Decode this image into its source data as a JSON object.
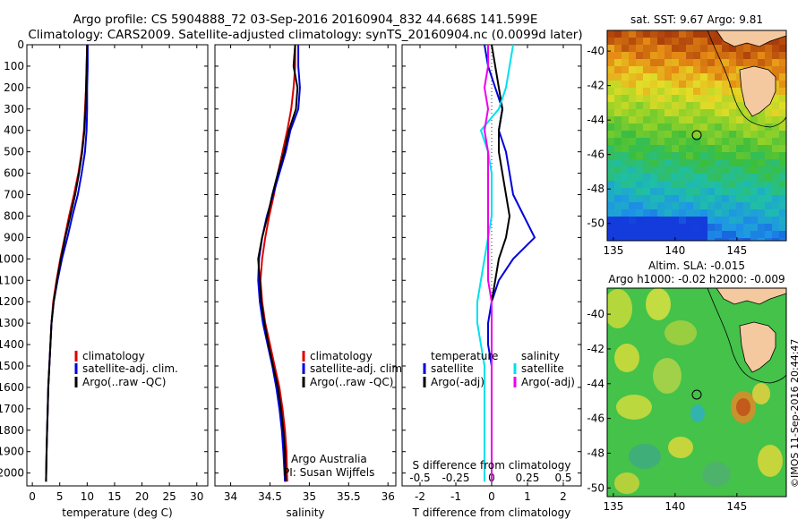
{
  "header": {
    "title_line1": "Argo profile: CS 5904888_72 03-Sep-2016 20160904_832 44.668S 141.599E",
    "title_line2": "Climatology: CARS2009. Satellite-adjusted climatology: synTS_20160904.nc (0.0099d later)"
  },
  "credits": {
    "org": "Argo Australia",
    "pi": "PI: Susan Wijffels",
    "stamp": "©IMOS 11-Sep-2016 20:44:47"
  },
  "colors": {
    "climatology": "#dd0000",
    "satellite": "#0000dd",
    "argo": "#000000",
    "salinity_satellite": "#00e0ee",
    "salinity_argo": "#ee00ee",
    "land": "#f5c9a0"
  },
  "chart_data": [
    {
      "id": "temperature",
      "type": "line",
      "xlabel": "temperature (deg C)",
      "ylabel": "",
      "xlim": [
        -1,
        32
      ],
      "ylim": [
        2060,
        0
      ],
      "xticks": [
        0,
        5,
        10,
        15,
        20,
        25,
        30
      ],
      "yticks": [
        0,
        100,
        200,
        300,
        400,
        500,
        600,
        700,
        800,
        900,
        1000,
        1100,
        1200,
        1300,
        1400,
        1500,
        1600,
        1700,
        1800,
        1900,
        2000
      ],
      "legend": [
        "climatology",
        "satellite-adj. clim.",
        "Argo(..raw -QC)"
      ],
      "series": [
        {
          "name": "climatology",
          "color": "#dd0000",
          "x": [
            10.0,
            9.9,
            9.8,
            9.6,
            9.4,
            9.0,
            8.4,
            7.6,
            6.7,
            5.9,
            5.1,
            4.4,
            3.8,
            3.5,
            3.3,
            3.1,
            2.9,
            2.8,
            2.7,
            2.6,
            2.5
          ],
          "y": [
            0,
            100,
            200,
            300,
            400,
            500,
            600,
            700,
            800,
            900,
            1000,
            1100,
            1200,
            1300,
            1400,
            1500,
            1600,
            1700,
            1800,
            1900,
            2040
          ]
        },
        {
          "name": "satellite-adj. clim.",
          "color": "#0000dd",
          "x": [
            10.1,
            10.1,
            10.0,
            10.0,
            9.9,
            9.6,
            9.0,
            8.3,
            7.3,
            6.4,
            5.4,
            4.6,
            3.9,
            3.5,
            3.3,
            3.1,
            2.9,
            2.8,
            2.7,
            2.6,
            2.5
          ],
          "y": [
            0,
            100,
            200,
            300,
            400,
            500,
            600,
            700,
            800,
            900,
            1000,
            1100,
            1200,
            1300,
            1400,
            1500,
            1600,
            1700,
            1800,
            1900,
            2040
          ]
        },
        {
          "name": "Argo(..raw -QC)",
          "color": "#000000",
          "x": [
            10.0,
            9.9,
            9.8,
            9.7,
            9.5,
            9.1,
            8.5,
            7.8,
            6.9,
            6.0,
            5.2,
            4.5,
            3.9,
            3.5,
            3.3,
            3.1,
            2.9,
            2.8,
            2.7,
            2.6,
            2.5
          ],
          "y": [
            0,
            100,
            200,
            300,
            400,
            500,
            600,
            700,
            800,
            900,
            1000,
            1100,
            1200,
            1300,
            1400,
            1500,
            1600,
            1700,
            1800,
            1900,
            2040
          ]
        }
      ]
    },
    {
      "id": "salinity",
      "type": "line",
      "xlabel": "salinity",
      "xlim": [
        33.8,
        36.1
      ],
      "ylim": [
        2060,
        0
      ],
      "xticks": [
        34,
        34.5,
        35,
        35.5,
        36
      ],
      "legend": [
        "climatology",
        "satellite-adj. clim.",
        "Argo(..raw -QC)"
      ],
      "series": [
        {
          "name": "climatology",
          "color": "#dd0000",
          "x": [
            34.82,
            34.82,
            34.8,
            34.77,
            34.72,
            34.66,
            34.6,
            34.55,
            34.49,
            34.44,
            34.4,
            34.38,
            34.4,
            34.44,
            34.5,
            34.56,
            34.62,
            34.66,
            34.69,
            34.71,
            34.72
          ],
          "y": [
            0,
            100,
            200,
            300,
            400,
            500,
            600,
            700,
            800,
            900,
            1000,
            1100,
            1200,
            1300,
            1400,
            1500,
            1600,
            1700,
            1800,
            1900,
            2040
          ]
        },
        {
          "name": "satellite-adj. clim.",
          "color": "#0000dd",
          "x": [
            34.86,
            34.86,
            34.88,
            34.86,
            34.76,
            34.7,
            34.62,
            34.54,
            34.46,
            34.4,
            34.36,
            34.35,
            34.37,
            34.41,
            34.47,
            34.53,
            34.58,
            34.62,
            34.65,
            34.67,
            34.69
          ],
          "y": [
            0,
            100,
            200,
            300,
            400,
            500,
            600,
            700,
            800,
            900,
            1000,
            1100,
            1200,
            1300,
            1400,
            1500,
            1600,
            1700,
            1800,
            1900,
            2040
          ]
        },
        {
          "name": "Argo(..raw -QC)",
          "color": "#000000",
          "x": [
            34.82,
            34.8,
            34.85,
            34.83,
            34.74,
            34.68,
            34.6,
            34.53,
            34.47,
            34.4,
            34.35,
            34.37,
            34.39,
            34.43,
            34.48,
            34.54,
            34.6,
            34.64,
            34.67,
            34.69,
            34.7
          ],
          "y": [
            0,
            100,
            200,
            300,
            400,
            500,
            600,
            700,
            800,
            900,
            1000,
            1100,
            1200,
            1300,
            1400,
            1500,
            1600,
            1700,
            1800,
            1900,
            2040
          ]
        }
      ]
    },
    {
      "id": "difference",
      "type": "line",
      "xlabel": "T difference from climatology",
      "xlabel_top": "S difference from climatology",
      "xlim": [
        -2.5,
        2.5
      ],
      "ylim": [
        2060,
        0
      ],
      "xticks": [
        -2,
        -1,
        0,
        1,
        2
      ],
      "xticklabels": [
        "-2",
        "-1",
        "0",
        "1",
        "2"
      ],
      "top_ticklabels": [
        "-0.5",
        "-0.25",
        "0",
        "0.25",
        "0.5"
      ],
      "legend_temperature": [
        "temperature",
        "satellite",
        "Argo(-adj)"
      ],
      "legend_salinity": [
        "salinity",
        "satellite",
        "Argo(-adj)"
      ],
      "series": [
        {
          "name": "satellite",
          "color": "#0000dd",
          "x": [
            -0.2,
            -0.1,
            0.1,
            0.3,
            0.2,
            0.4,
            0.5,
            0.6,
            0.9,
            1.2,
            0.6,
            0.2,
            0.0,
            -0.1,
            -0.1,
            0.0,
            0.0,
            0.0,
            0.0,
            0.0,
            0.0
          ],
          "y": [
            0,
            100,
            200,
            300,
            400,
            500,
            600,
            700,
            800,
            900,
            1000,
            1100,
            1200,
            1300,
            1400,
            1500,
            1600,
            1700,
            1800,
            1900,
            2040
          ]
        },
        {
          "name": "Argo(-adj)",
          "color": "#000000",
          "x": [
            0.0,
            0.1,
            0.2,
            0.3,
            0.2,
            0.2,
            0.3,
            0.4,
            0.5,
            0.4,
            0.2,
            0.1,
            0.0,
            0.0,
            0.0,
            0.0,
            0.0,
            0.0,
            0.0,
            0.0,
            0.0
          ],
          "y": [
            0,
            100,
            200,
            300,
            400,
            500,
            600,
            700,
            800,
            900,
            1000,
            1100,
            1200,
            1300,
            1400,
            1500,
            1600,
            1700,
            1800,
            1900,
            2040
          ]
        },
        {
          "name": "salinity satellite",
          "color": "#00e0ee",
          "x": [
            0.6,
            0.5,
            0.4,
            0.2,
            -0.3,
            -0.1,
            0.0,
            0.0,
            0.0,
            -0.1,
            -0.2,
            -0.3,
            -0.4,
            -0.4,
            -0.3,
            -0.2,
            -0.2,
            -0.2,
            -0.2,
            -0.2,
            -0.2
          ],
          "y": [
            0,
            100,
            200,
            300,
            400,
            500,
            600,
            700,
            800,
            900,
            1000,
            1100,
            1200,
            1300,
            1400,
            1500,
            1600,
            1700,
            1800,
            1900,
            2040
          ]
        },
        {
          "name": "salinity Argo(-adj)",
          "color": "#ee00ee",
          "x": [
            -0.1,
            -0.1,
            -0.2,
            -0.1,
            -0.2,
            -0.1,
            -0.1,
            -0.1,
            -0.1,
            -0.1,
            -0.1,
            -0.1,
            0.0,
            0.0,
            0.0,
            0.0,
            0.0,
            0.0,
            0.0,
            0.0,
            0.0
          ],
          "y": [
            0,
            100,
            200,
            300,
            400,
            500,
            600,
            700,
            800,
            900,
            1000,
            1100,
            1200,
            1300,
            1400,
            1500,
            1600,
            1700,
            1800,
            1900,
            2040
          ]
        }
      ]
    },
    {
      "id": "sst_map",
      "type": "heatmap",
      "title": "sat. SST: 9.67 Argo: 9.81",
      "xlim": [
        134.5,
        149
      ],
      "ylim": [
        -51,
        -38.8
      ],
      "xticks": [
        135,
        140,
        145
      ],
      "yticks": [
        -40,
        -42,
        -44,
        -46,
        -48,
        -50
      ],
      "argo_position": [
        141.6,
        -44.67
      ]
    },
    {
      "id": "sla_map",
      "type": "heatmap",
      "title": "Altim. SLA: -0.015",
      "subtitle": "Argo h1000: -0.02 h2000: -0.009",
      "xlim": [
        134.5,
        149
      ],
      "ylim": [
        -50.5,
        -38.5
      ],
      "xticks": [
        135,
        140,
        145
      ],
      "yticks": [
        -40,
        -42,
        -44,
        -46,
        -48,
        -50
      ],
      "argo_position": [
        141.6,
        -44.67
      ]
    }
  ]
}
